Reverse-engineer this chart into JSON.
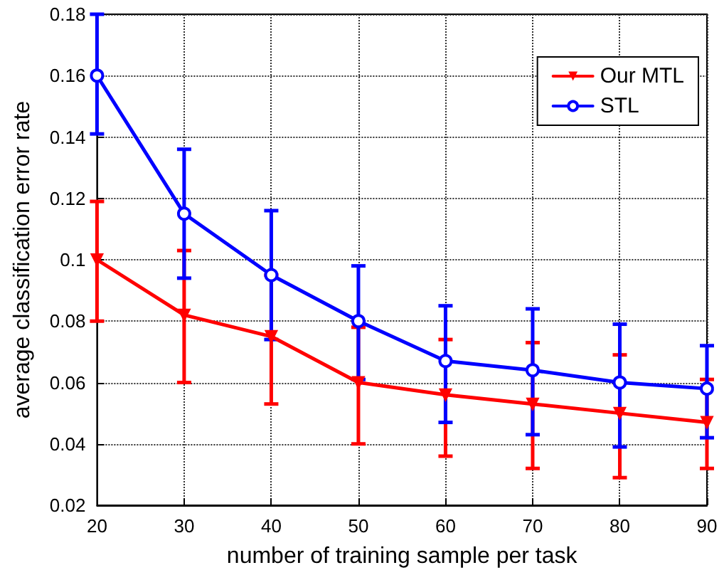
{
  "chart_data": {
    "type": "line",
    "xlabel": "number of training sample per task",
    "ylabel": "average classification error rate",
    "x": [
      20,
      30,
      40,
      50,
      60,
      70,
      80,
      90
    ],
    "series": [
      {
        "name": "Our MTL",
        "color": "#ff0000",
        "marker": "triangle",
        "values": [
          0.1,
          0.082,
          0.075,
          0.06,
          0.056,
          0.053,
          0.05,
          0.047
        ],
        "errors": [
          [
            0.08,
            0.119
          ],
          [
            0.06,
            0.103
          ],
          [
            0.053,
            0.095
          ],
          [
            0.04,
            0.078
          ],
          [
            0.036,
            0.074
          ],
          [
            0.032,
            0.073
          ],
          [
            0.029,
            0.069
          ],
          [
            0.032,
            0.061
          ]
        ]
      },
      {
        "name": "STL",
        "color": "#0000ff",
        "marker": "circle",
        "values": [
          0.16,
          0.115,
          0.095,
          0.08,
          0.067,
          0.064,
          0.06,
          0.058
        ],
        "errors": [
          [
            0.141,
            0.18
          ],
          [
            0.094,
            0.136
          ],
          [
            0.074,
            0.116
          ],
          [
            0.061,
            0.098
          ],
          [
            0.047,
            0.085
          ],
          [
            0.043,
            0.084
          ],
          [
            0.039,
            0.079
          ],
          [
            0.042,
            0.072
          ]
        ]
      }
    ],
    "xlim": [
      20,
      90
    ],
    "xticks": [
      20,
      30,
      40,
      50,
      60,
      70,
      80,
      90
    ],
    "ylim": [
      0.02,
      0.18
    ],
    "yticks": [
      0.02,
      0.04,
      0.06,
      0.08,
      0.1,
      0.12,
      0.14,
      0.16,
      0.18
    ],
    "grid": true,
    "legend": "top right",
    "line_style": "solid"
  }
}
